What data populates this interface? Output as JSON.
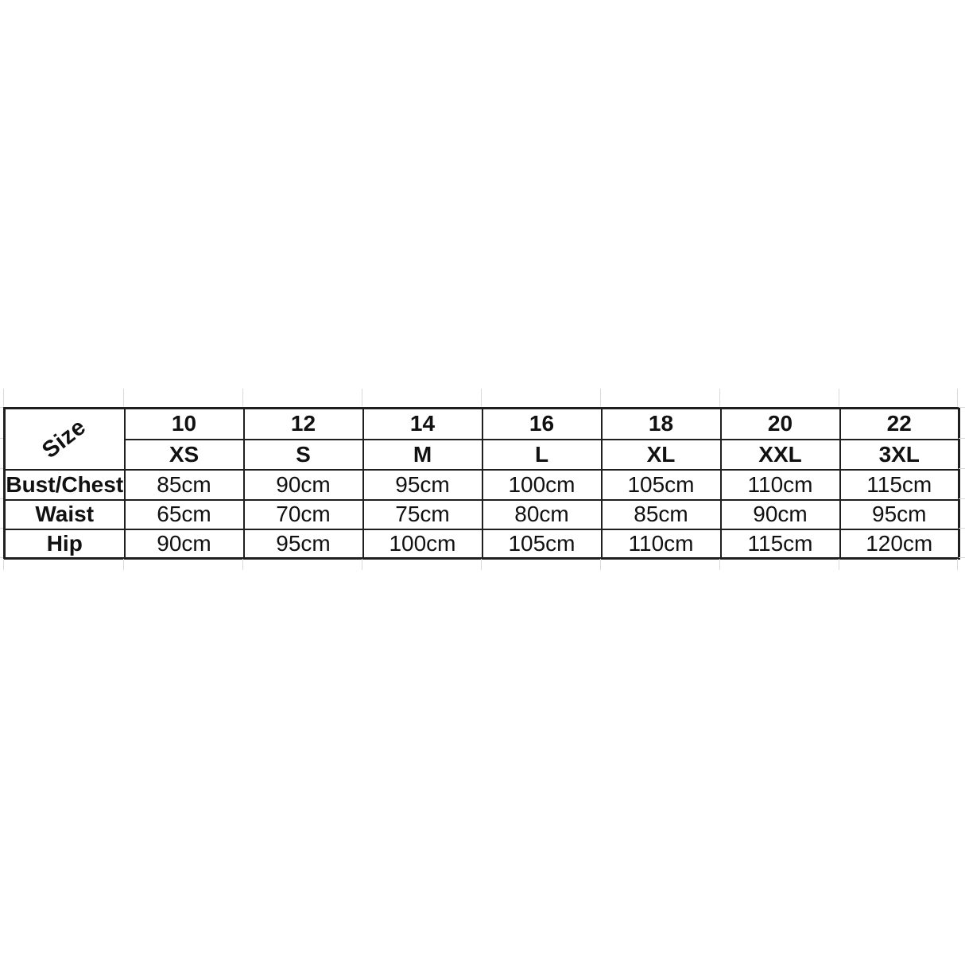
{
  "chart_data": {
    "type": "table",
    "corner_label": "Size",
    "columns_numeric": [
      "10",
      "12",
      "14",
      "16",
      "18",
      "20",
      "22"
    ],
    "columns_alpha": [
      "XS",
      "S",
      "M",
      "L",
      "XL",
      "XXL",
      "3XL"
    ],
    "rows": [
      {
        "label": "Bust/Chest",
        "values": [
          "85cm",
          "90cm",
          "95cm",
          "100cm",
          "105cm",
          "110cm",
          "115cm"
        ]
      },
      {
        "label": "Waist",
        "values": [
          "65cm",
          "70cm",
          "75cm",
          "80cm",
          "85cm",
          "90cm",
          "95cm"
        ]
      },
      {
        "label": "Hip",
        "values": [
          "90cm",
          "95cm",
          "100cm",
          "105cm",
          "110cm",
          "115cm",
          "120cm"
        ]
      }
    ],
    "layout_hints": {
      "grid": "on",
      "units": "cm"
    }
  },
  "style": {
    "background": "#ffffff",
    "border_color": "#1f1f1f",
    "text_color": "#111111",
    "faint_grid_color": "#d9d9d9"
  }
}
